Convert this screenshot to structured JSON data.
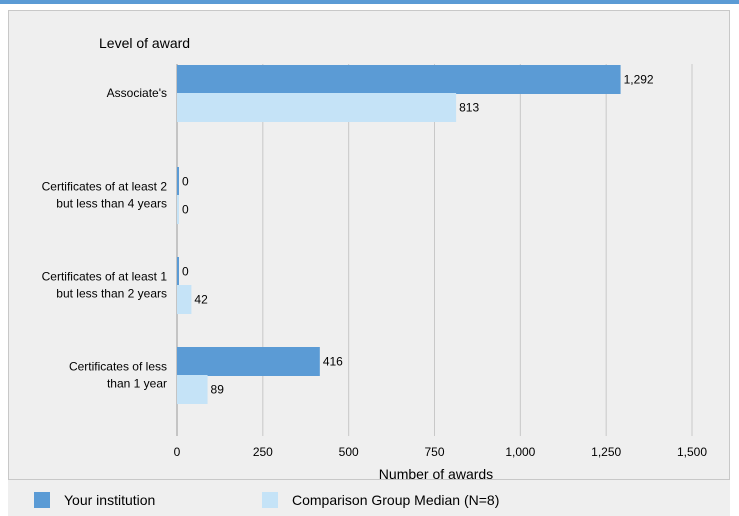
{
  "chart_data": {
    "type": "bar",
    "orientation": "horizontal",
    "y_axis_title": "Level of award",
    "xlabel": "Number of awards",
    "xlim": [
      0,
      1500
    ],
    "xticks": [
      0,
      250,
      500,
      750,
      1000,
      1250,
      1500
    ],
    "xtick_labels": [
      "0",
      "250",
      "500",
      "750",
      "1,000",
      "1,250",
      "1,500"
    ],
    "grid": true,
    "categories": [
      [
        "Associate's"
      ],
      [
        "Certificates of at least 2",
        "but less than 4 years"
      ],
      [
        "Certificates of at least 1",
        "but  less than 2 years"
      ],
      [
        "Certificates of less",
        "than 1 year"
      ]
    ],
    "series": [
      {
        "name": "Your institution",
        "color": "#5b9bd5",
        "values": [
          1292,
          0,
          0,
          416
        ],
        "labels": [
          "1,292",
          "0",
          "0",
          "416"
        ]
      },
      {
        "name": "Comparison Group Median (N=8)",
        "color": "#c5e3f7",
        "values": [
          813,
          0,
          42,
          89
        ],
        "labels": [
          "813",
          "0",
          "42",
          "89"
        ]
      }
    ]
  },
  "legend": {
    "items": [
      {
        "label": "Your institution",
        "color": "#5b9bd5"
      },
      {
        "label": "Comparison Group Median (N=8)",
        "color": "#c5e3f7"
      }
    ]
  },
  "colors": {
    "accent_rule": "#5b9bd5",
    "panel_background": "#efefef",
    "gridline": "#c8c8c8"
  }
}
